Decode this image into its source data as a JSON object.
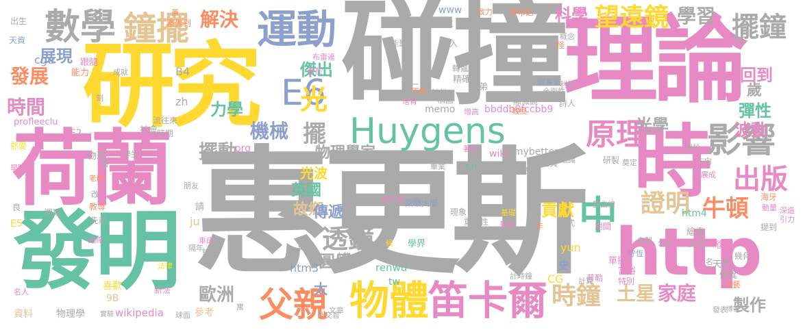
{
  "palette": {
    "gray": "#aaaaaa",
    "pink": "#e78ac3",
    "green": "#66c2a5",
    "yellow": "#ffd92f",
    "orange": "#fc8d62",
    "blue": "#8da0cb",
    "tan": "#e5c494",
    "lime": "#a6d854"
  },
  "words": [
    {
      "text": "惠更斯",
      "color": "gray"
    },
    {
      "text": "碰撞",
      "color": "gray"
    },
    {
      "text": "研究",
      "color": "yellow"
    },
    {
      "text": "理論",
      "color": "pink"
    },
    {
      "text": "荷蘭",
      "color": "pink"
    },
    {
      "text": "發明",
      "color": "green"
    },
    {
      "text": "時",
      "color": "pink"
    },
    {
      "text": "http",
      "color": "pink"
    },
    {
      "text": "Huygens",
      "color": "green"
    },
    {
      "text": "運動",
      "color": "blue"
    },
    {
      "text": "數學",
      "color": "gray"
    },
    {
      "text": "鐘擺",
      "color": "tan"
    },
    {
      "text": "物體",
      "color": "yellow"
    },
    {
      "text": "笛卡爾",
      "color": "pink"
    },
    {
      "text": "父親",
      "color": "orange"
    },
    {
      "text": "影響",
      "color": "gray"
    },
    {
      "text": "原理",
      "color": "pink"
    },
    {
      "text": "中",
      "color": "green"
    },
    {
      "text": "出版",
      "color": "pink"
    },
    {
      "text": "E6",
      "color": "blue"
    },
    {
      "text": "證明",
      "color": "tan"
    },
    {
      "text": "透鏡",
      "color": "gray"
    },
    {
      "text": "時鐘",
      "color": "tan"
    },
    {
      "text": "土星",
      "color": "tan"
    },
    {
      "text": "家庭",
      "color": "pink"
    },
    {
      "text": "擺鐘",
      "color": "gray"
    },
    {
      "text": "望遠鏡",
      "color": "yellow"
    },
    {
      "text": "解決",
      "color": "orange"
    },
    {
      "text": "學習",
      "color": "gray"
    },
    {
      "text": "發展",
      "color": "orange"
    },
    {
      "text": "時間",
      "color": "pink"
    },
    {
      "text": "展現",
      "color": "blue"
    },
    {
      "text": "傑出",
      "color": "green"
    },
    {
      "text": "光",
      "color": "yellow"
    },
    {
      "text": "擺",
      "color": "gray"
    },
    {
      "text": "擺動",
      "color": "gray"
    },
    {
      "text": "機械",
      "color": "blue"
    },
    {
      "text": "力學",
      "color": "green"
    },
    {
      "text": "光學",
      "color": "gray"
    },
    {
      "text": "科學",
      "color": "pink"
    },
    {
      "text": "回到",
      "color": "pink"
    },
    {
      "text": "歲",
      "color": "gray"
    },
    {
      "text": "彈性",
      "color": "green"
    },
    {
      "text": "波動",
      "color": "pink"
    },
    {
      "text": "牛頓",
      "color": "orange"
    },
    {
      "text": "貢獻",
      "color": "yellow"
    },
    {
      "text": "製作",
      "color": "gray"
    },
    {
      "text": "歐洲",
      "color": "gray"
    },
    {
      "text": "物理學家",
      "color": "gray"
    },
    {
      "text": "光波",
      "color": "yellow"
    },
    {
      "text": "英國",
      "color": "green"
    },
    {
      "text": "故鄉",
      "color": "tan"
    },
    {
      "text": "圓周",
      "color": "gray"
    },
    {
      "text": "傳遞",
      "color": "blue"
    },
    {
      "text": "太",
      "color": "blue"
    },
    {
      "text": "htm3",
      "color": "blue"
    },
    {
      "text": "wikipedia",
      "color": "pink"
    },
    {
      "text": "物理學",
      "color": "gray"
    },
    {
      "text": "參考",
      "color": "tan"
    },
    {
      "text": "史",
      "color": "blue"
    },
    {
      "text": "CG",
      "color": "yellow"
    },
    {
      "text": "memo",
      "color": "gray"
    },
    {
      "text": "bbddb8fccbb9",
      "color": "pink"
    },
    {
      "text": "mybetter",
      "color": "gray"
    },
    {
      "text": "wiki",
      "color": "pink"
    },
    {
      "text": "cn",
      "color": "green"
    },
    {
      "text": "AF2",
      "color": "pink"
    },
    {
      "text": "org",
      "color": "pink"
    },
    {
      "text": "zh",
      "color": "gray"
    },
    {
      "text": "B4",
      "color": "gray"
    },
    {
      "text": "www",
      "color": "blue"
    },
    {
      "text": "htm4",
      "color": "green"
    },
    {
      "text": "yun",
      "color": "yellow"
    },
    {
      "text": "renwu",
      "color": "green"
    },
    {
      "text": "tw",
      "color": "green"
    },
    {
      "text": "ju",
      "color": "tan"
    },
    {
      "text": "E5",
      "color": "yellow"
    },
    {
      "text": "9B",
      "color": "tan"
    },
    {
      "text": "cgu",
      "color": "blue"
    },
    {
      "text": "profleeclu",
      "color": "pink"
    },
    {
      "text": "資料",
      "color": "tan"
    },
    {
      "text": "名人",
      "color": "pink"
    },
    {
      "text": "喜歡",
      "color": "yellow"
    },
    {
      "text": "新法",
      "color": "pink"
    },
    {
      "text": "出生",
      "color": "gray"
    },
    {
      "text": "天資",
      "color": "blue"
    },
    {
      "text": "跟隨",
      "color": "pink"
    },
    {
      "text": "能力",
      "color": "orange"
    },
    {
      "text": "學院",
      "color": "pink"
    },
    {
      "text": "熱愛",
      "color": "yellow"
    },
    {
      "text": "社會",
      "color": "gray"
    },
    {
      "text": "時期",
      "color": "gray"
    },
    {
      "text": "週期",
      "color": "gray"
    },
    {
      "text": "先前",
      "color": "gray"
    },
    {
      "text": "教導",
      "color": "orange"
    },
    {
      "text": "老師",
      "color": "orange"
    },
    {
      "text": "改",
      "color": "gray"
    },
    {
      "text": "良",
      "color": "gray"
    },
    {
      "text": "曲線",
      "color": "pink"
    },
    {
      "text": "法律",
      "color": "yellow"
    },
    {
      "text": "聽穎",
      "color": "gray"
    },
    {
      "text": "人物",
      "color": "gray"
    },
    {
      "text": "詩歌",
      "color": "gray"
    },
    {
      "text": "學界",
      "color": "green"
    },
    {
      "text": "旅遊",
      "color": "gray"
    },
    {
      "text": "萊頓大學",
      "color": "blue"
    },
    {
      "text": "現象",
      "color": "gray"
    },
    {
      "text": "重要性",
      "color": "gray"
    },
    {
      "text": "動手",
      "color": "gray"
    },
    {
      "text": "圓周長",
      "color": "pink"
    },
    {
      "text": "天文學",
      "color": "gray"
    },
    {
      "text": "見聞",
      "color": "pink"
    },
    {
      "text": "基礎",
      "color": "yellow"
    },
    {
      "text": "計時鐘",
      "color": "gray"
    },
    {
      "text": "普勒",
      "color": "pink"
    },
    {
      "text": "富裕",
      "color": "pink"
    },
    {
      "text": "特別",
      "color": "pink"
    },
    {
      "text": "單擺",
      "color": "pink"
    },
    {
      "text": "優異",
      "color": "gray"
    },
    {
      "text": "才藝",
      "color": "orange"
    },
    {
      "text": "天體",
      "color": "gray"
    },
    {
      "text": "守恆",
      "color": "blue"
    },
    {
      "text": "復興",
      "color": "pink"
    },
    {
      "text": "幾何",
      "color": "gray"
    },
    {
      "text": "文藝",
      "color": "gray"
    },
    {
      "text": "公式",
      "color": "gray"
    },
    {
      "text": "自製",
      "color": "gray"
    },
    {
      "text": "期間",
      "color": "pink"
    },
    {
      "text": "繪畫",
      "color": "gray"
    },
    {
      "text": "雙曲線",
      "color": "gray"
    },
    {
      "text": "海牙",
      "color": "orange"
    },
    {
      "text": "提到",
      "color": "gray"
    },
    {
      "text": "深造",
      "color": "pink"
    },
    {
      "text": "引力",
      "color": "pink"
    },
    {
      "text": "發展成",
      "color": "pink"
    },
    {
      "text": "研製",
      "color": "gray"
    },
    {
      "text": "奠定",
      "color": "gray"
    },
    {
      "text": "結識",
      "color": "gray"
    },
    {
      "text": "工具",
      "color": "gray"
    },
    {
      "text": "透徹",
      "color": "gray"
    },
    {
      "text": "著作",
      "color": "pink"
    },
    {
      "text": "畢業",
      "color": "gray"
    },
    {
      "text": "精確",
      "color": "gray"
    },
    {
      "text": "轉進",
      "color": "gray"
    },
    {
      "text": "弟弟",
      "color": "gray"
    },
    {
      "text": "不解",
      "color": "orange"
    },
    {
      "text": "第一",
      "color": "gray"
    },
    {
      "text": "等時性",
      "color": "gray"
    },
    {
      "text": "培育",
      "color": "pink"
    },
    {
      "text": "構圖",
      "color": "gray"
    },
    {
      "text": "增高",
      "color": "pink"
    },
    {
      "text": "教授",
      "color": "orange"
    },
    {
      "text": "顯微鏡",
      "color": "gray"
    },
    {
      "text": "詩人",
      "color": "gray"
    },
    {
      "text": "全面性",
      "color": "gray"
    },
    {
      "text": "阿基米",
      "color": "blue"
    },
    {
      "text": "利於",
      "color": "gray"
    },
    {
      "text": "觀察",
      "color": "gray"
    },
    {
      "text": "萊布尼",
      "color": "orange"
    },
    {
      "text": "怪",
      "color": "orange"
    },
    {
      "text": "茲",
      "color": "gray"
    },
    {
      "text": "能量",
      "color": "gray"
    },
    {
      "text": "引入",
      "color": "gray"
    },
    {
      "text": "成就",
      "color": "gray"
    },
    {
      "text": "地位",
      "color": "gray"
    },
    {
      "text": "段",
      "color": "gray"
    },
    {
      "text": "致力",
      "color": "orange"
    },
    {
      "text": "小時",
      "color": "gray"
    },
    {
      "text": "布雷達",
      "color": "pink"
    },
    {
      "text": "善於",
      "color": "pink"
    },
    {
      "text": "概念",
      "color": "gray"
    },
    {
      "text": "用於",
      "color": "gray"
    },
    {
      "text": "方向",
      "color": "gray"
    },
    {
      "text": "流往來",
      "color": "gray"
    },
    {
      "text": "學生",
      "color": "gray"
    },
    {
      "text": "朋友",
      "color": "gray"
    },
    {
      "text": "書",
      "color": "gray"
    },
    {
      "text": "兼",
      "color": "orange"
    },
    {
      "text": "察覺到",
      "color": "orange"
    },
    {
      "text": "刻",
      "color": "gray"
    },
    {
      "text": "請",
      "color": "gray"
    },
    {
      "text": "鐘",
      "color": "gray"
    },
    {
      "text": "隔年",
      "color": "gray"
    },
    {
      "text": "候",
      "color": "yellow"
    },
    {
      "text": "車床",
      "color": "pink"
    },
    {
      "text": "擺式",
      "color": "gray"
    },
    {
      "text": "計算",
      "color": "gray"
    },
    {
      "text": "動量",
      "color": "pink"
    },
    {
      "text": "名",
      "color": "gray"
    },
    {
      "text": "文章",
      "color": "gray"
    },
    {
      "text": "外交官",
      "color": "gray"
    },
    {
      "text": "發表",
      "color": "gray"
    },
    {
      "text": "博士",
      "color": "gray"
    },
    {
      "text": "實驗",
      "color": "gray"
    },
    {
      "text": "球面",
      "color": "gray"
    },
    {
      "text": "年",
      "color": "orange"
    },
    {
      "text": "寓",
      "color": "gray"
    },
    {
      "text": "物理",
      "color": "gray"
    }
  ]
}
